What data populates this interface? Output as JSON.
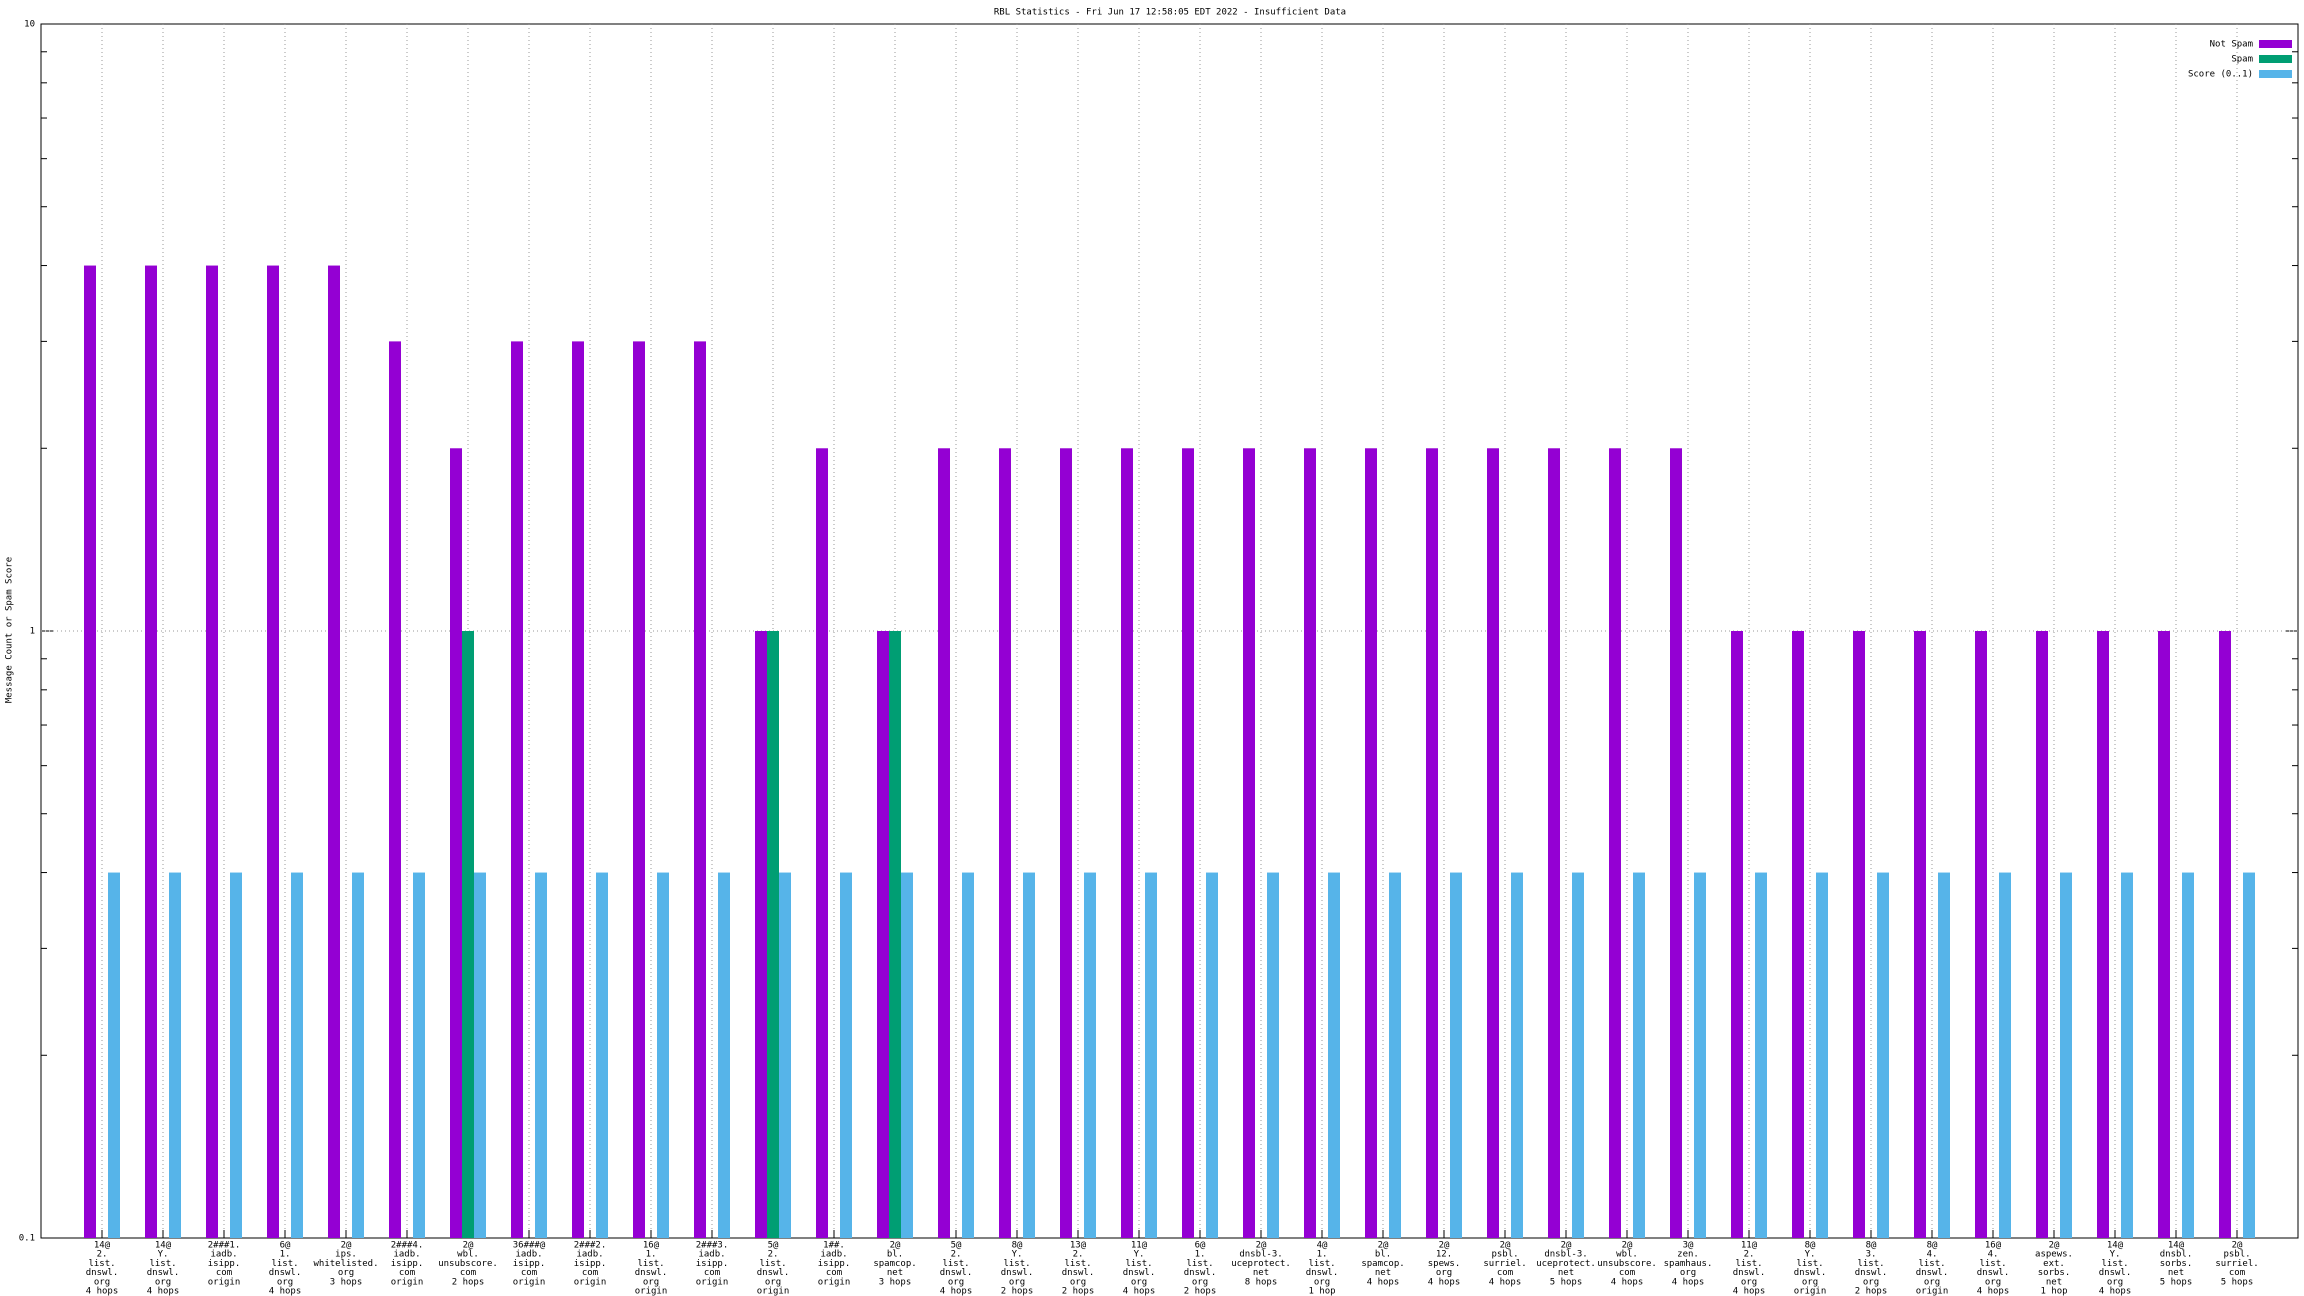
{
  "chart_data": {
    "type": "bar",
    "title": "RBL Statistics - Fri Jun 17 12:58:05 EDT 2022 - Insufficient Data",
    "y_label": "Message Count or Spam Score",
    "log_y": true,
    "grid": true,
    "legend_position": "top-right",
    "ylim": [
      0.1,
      10
    ],
    "yticks": [
      0.1,
      1,
      10
    ],
    "yticks_minor": [
      0.2,
      0.3,
      0.4,
      0.5,
      0.6,
      0.7,
      0.8,
      0.9,
      2,
      3,
      4,
      5,
      6,
      7,
      8,
      9
    ],
    "categories": [
      [
        "14@",
        "2.",
        "list.",
        "dnswl.",
        "org",
        "4 hops"
      ],
      [
        "14@",
        "Y.",
        "list.",
        "dnswl.",
        "org",
        "4 hops"
      ],
      [
        "2###1.",
        "iadb.",
        "isipp.",
        "com",
        "origin"
      ],
      [
        "6@",
        "1.",
        "list.",
        "dnswl.",
        "org",
        "4 hops"
      ],
      [
        "2@",
        "ips.",
        "whitelisted.",
        "org",
        "3 hops"
      ],
      [
        "2###4.",
        "iadb.",
        "isipp.",
        "com",
        "origin"
      ],
      [
        "2@",
        "wbl.",
        "unsubscore.",
        "com",
        "2 hops"
      ],
      [
        "36###@",
        "iadb.",
        "isipp.",
        "com",
        "origin"
      ],
      [
        "2###2.",
        "iadb.",
        "isipp.",
        "com",
        "origin"
      ],
      [
        "16@",
        "1.",
        "list.",
        "dnswl.",
        "org",
        "origin"
      ],
      [
        "2###3.",
        "iadb.",
        "isipp.",
        "com",
        "origin"
      ],
      [
        "5@",
        "2.",
        "list.",
        "dnswl.",
        "org",
        "origin"
      ],
      [
        "1##.",
        "iadb.",
        "isipp.",
        "com",
        "origin"
      ],
      [
        "2@",
        "bl.",
        "spamcop.",
        "net",
        "3 hops"
      ],
      [
        "5@",
        "2.",
        "list.",
        "dnswl.",
        "org",
        "4 hops"
      ],
      [
        "8@",
        "Y.",
        "list.",
        "dnswl.",
        "org",
        "2 hops"
      ],
      [
        "13@",
        "2.",
        "list.",
        "dnswl.",
        "org",
        "2 hops"
      ],
      [
        "11@",
        "Y.",
        "list.",
        "dnswl.",
        "org",
        "4 hops"
      ],
      [
        "6@",
        "1.",
        "list.",
        "dnswl.",
        "org",
        "2 hops"
      ],
      [
        "2@",
        "dnsbl-3.",
        "uceprotect.",
        "net",
        "8 hops"
      ],
      [
        "4@",
        "1.",
        "list.",
        "dnswl.",
        "org",
        "1 hop"
      ],
      [
        "2@",
        "bl.",
        "spamcop.",
        "net",
        "4 hops"
      ],
      [
        "2@",
        "12.",
        "spews.",
        "org",
        "4 hops"
      ],
      [
        "2@",
        "psbl.",
        "surriel.",
        "com",
        "4 hops"
      ],
      [
        "2@",
        "dnsbl-3.",
        "uceprotect.",
        "net",
        "5 hops"
      ],
      [
        "2@",
        "wbl.",
        "unsubscore.",
        "com",
        "4 hops"
      ],
      [
        "3@",
        "zen.",
        "spamhaus.",
        "org",
        "4 hops"
      ],
      [
        "11@",
        "2.",
        "list.",
        "dnswl.",
        "org",
        "4 hops"
      ],
      [
        "8@",
        "Y.",
        "list.",
        "dnswl.",
        "org",
        "origin"
      ],
      [
        "8@",
        "3.",
        "list.",
        "dnswl.",
        "org",
        "2 hops"
      ],
      [
        "8@",
        "4.",
        "list.",
        "dnswl.",
        "org",
        "origin"
      ],
      [
        "16@",
        "4.",
        "list.",
        "dnswl.",
        "org",
        "4 hops"
      ],
      [
        "2@",
        "aspews.",
        "ext.",
        "sorbs.",
        "net",
        "1 hop"
      ],
      [
        "14@",
        "Y.",
        "list.",
        "dnswl.",
        "org",
        "4 hops"
      ],
      [
        "14@",
        "dnsbl.",
        "sorbs.",
        "net",
        "5 hops"
      ],
      [
        "2@",
        "psbl.",
        "surriel.",
        "com",
        "5 hops"
      ]
    ],
    "series": [
      {
        "name": "Not Spam",
        "color": "#9400d3",
        "values": [
          4,
          4,
          4,
          4,
          4,
          3,
          2,
          3,
          3,
          3,
          3,
          1,
          2,
          1,
          2,
          2,
          2,
          2,
          2,
          2,
          2,
          2,
          2,
          2,
          2,
          2,
          2,
          1,
          1,
          1,
          1,
          1,
          1,
          1,
          1,
          1
        ]
      },
      {
        "name": "Spam",
        "color": "#009e73",
        "values": [
          null,
          null,
          null,
          null,
          null,
          null,
          1,
          null,
          null,
          null,
          null,
          1,
          null,
          1,
          null,
          null,
          null,
          null,
          null,
          null,
          null,
          null,
          null,
          null,
          null,
          null,
          null,
          null,
          null,
          null,
          null,
          null,
          null,
          null,
          null,
          null
        ]
      },
      {
        "name": "Score (0..1)",
        "color": "#56b4e9",
        "values": [
          0.4,
          0.4,
          0.4,
          0.4,
          0.4,
          0.4,
          0.4,
          0.4,
          0.4,
          0.4,
          0.4,
          0.4,
          0.4,
          0.4,
          0.4,
          0.4,
          0.4,
          0.4,
          0.4,
          0.4,
          0.4,
          0.4,
          0.4,
          0.4,
          0.4,
          0.4,
          0.4,
          0.4,
          0.4,
          0.4,
          0.4,
          0.4,
          0.4,
          0.4,
          0.4,
          0.4
        ]
      }
    ]
  }
}
